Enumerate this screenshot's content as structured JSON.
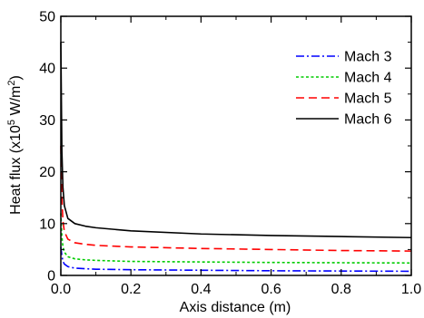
{
  "chart_data": {
    "type": "line",
    "xlabel": "Axis distance (m)",
    "ylabel": {
      "prefix": "Heat flux (x10",
      "exp1": "5",
      "mid": " W/m",
      "exp2": "2",
      "suffix": ")"
    },
    "xlim": [
      0.0,
      1.0
    ],
    "ylim": [
      0,
      50
    ],
    "xticks": [
      "0.0",
      "0.2",
      "0.4",
      "0.6",
      "0.8",
      "1.0"
    ],
    "yticks": [
      "0",
      "10",
      "20",
      "30",
      "40",
      "50"
    ],
    "grid": false,
    "legend_position": "top-right",
    "series": [
      {
        "name": "Mach 3",
        "color": "#0000ff",
        "dash": "dashdot",
        "x": [
          0.0,
          0.003,
          0.006,
          0.01,
          0.02,
          0.04,
          0.07,
          0.1,
          0.2,
          0.4,
          0.6,
          0.8,
          1.0
        ],
        "y": [
          5.5,
          3.8,
          2.7,
          2.2,
          1.7,
          1.4,
          1.3,
          1.2,
          1.1,
          1.0,
          0.9,
          0.85,
          0.8
        ]
      },
      {
        "name": "Mach 4",
        "color": "#00cc00",
        "dash": "dotted",
        "x": [
          0.0,
          0.003,
          0.006,
          0.01,
          0.02,
          0.04,
          0.07,
          0.1,
          0.2,
          0.4,
          0.6,
          0.8,
          1.0
        ],
        "y": [
          12.0,
          7.5,
          5.5,
          4.5,
          3.6,
          3.2,
          3.0,
          2.9,
          2.7,
          2.6,
          2.5,
          2.45,
          2.4
        ]
      },
      {
        "name": "Mach 5",
        "color": "#ff0000",
        "dash": "dashed",
        "x": [
          0.0,
          0.003,
          0.006,
          0.01,
          0.02,
          0.04,
          0.07,
          0.1,
          0.2,
          0.4,
          0.6,
          0.8,
          1.0
        ],
        "y": [
          25.0,
          15.0,
          10.5,
          8.5,
          7.0,
          6.3,
          6.0,
          5.8,
          5.5,
          5.2,
          5.0,
          4.8,
          4.7
        ]
      },
      {
        "name": "Mach 6",
        "color": "#000000",
        "dash": "solid",
        "x": [
          0.0,
          0.003,
          0.006,
          0.01,
          0.02,
          0.04,
          0.07,
          0.1,
          0.2,
          0.4,
          0.6,
          0.8,
          1.0
        ],
        "y": [
          45.0,
          24.0,
          17.0,
          13.5,
          11.0,
          10.0,
          9.5,
          9.2,
          8.6,
          8.0,
          7.7,
          7.5,
          7.3
        ]
      }
    ]
  }
}
